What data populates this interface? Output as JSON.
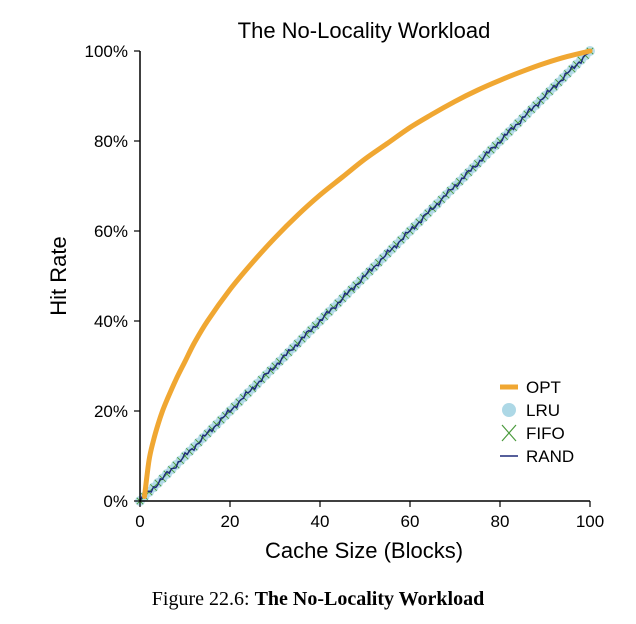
{
  "chart_data": {
    "type": "line",
    "title": "The No-Locality Workload",
    "xlabel": "Cache Size (Blocks)",
    "ylabel": "Hit Rate",
    "xlim": [
      0,
      100
    ],
    "ylim": [
      0,
      100
    ],
    "x_ticks": [
      "0",
      "20",
      "40",
      "60",
      "80",
      "100"
    ],
    "y_ticks": [
      "0%",
      "20%",
      "40%",
      "60%",
      "80%",
      "100%"
    ],
    "legend_position": "lower-right",
    "series": [
      {
        "name": "OPT",
        "color": "#f0a732",
        "style": "thick-line",
        "x": [
          1,
          2,
          3,
          4,
          5,
          6,
          8,
          10,
          12,
          15,
          20,
          25,
          30,
          35,
          40,
          45,
          50,
          55,
          60,
          65,
          70,
          75,
          80,
          85,
          90,
          95,
          100
        ],
        "values": [
          1,
          9,
          13.5,
          17,
          20,
          22.5,
          27,
          31,
          35,
          40,
          47,
          53,
          58.5,
          63.5,
          68,
          72,
          76,
          79.5,
          83,
          86,
          88.8,
          91.3,
          93.5,
          95.5,
          97.3,
          98.8,
          100
        ]
      },
      {
        "name": "LRU",
        "color": "#add8e6",
        "style": "dots",
        "x": [
          0,
          100
        ],
        "values": [
          0,
          100
        ]
      },
      {
        "name": "FIFO",
        "color": "#4a9a3c",
        "style": "crosses",
        "x": [
          0,
          100
        ],
        "values": [
          0,
          100
        ]
      },
      {
        "name": "RAND",
        "color": "#1f2a7a",
        "style": "jagged-line",
        "x": [
          0,
          100
        ],
        "values": [
          0,
          100
        ]
      }
    ]
  },
  "caption": {
    "prefix": "Figure 22.6: ",
    "title": "The No-Locality Workload"
  }
}
